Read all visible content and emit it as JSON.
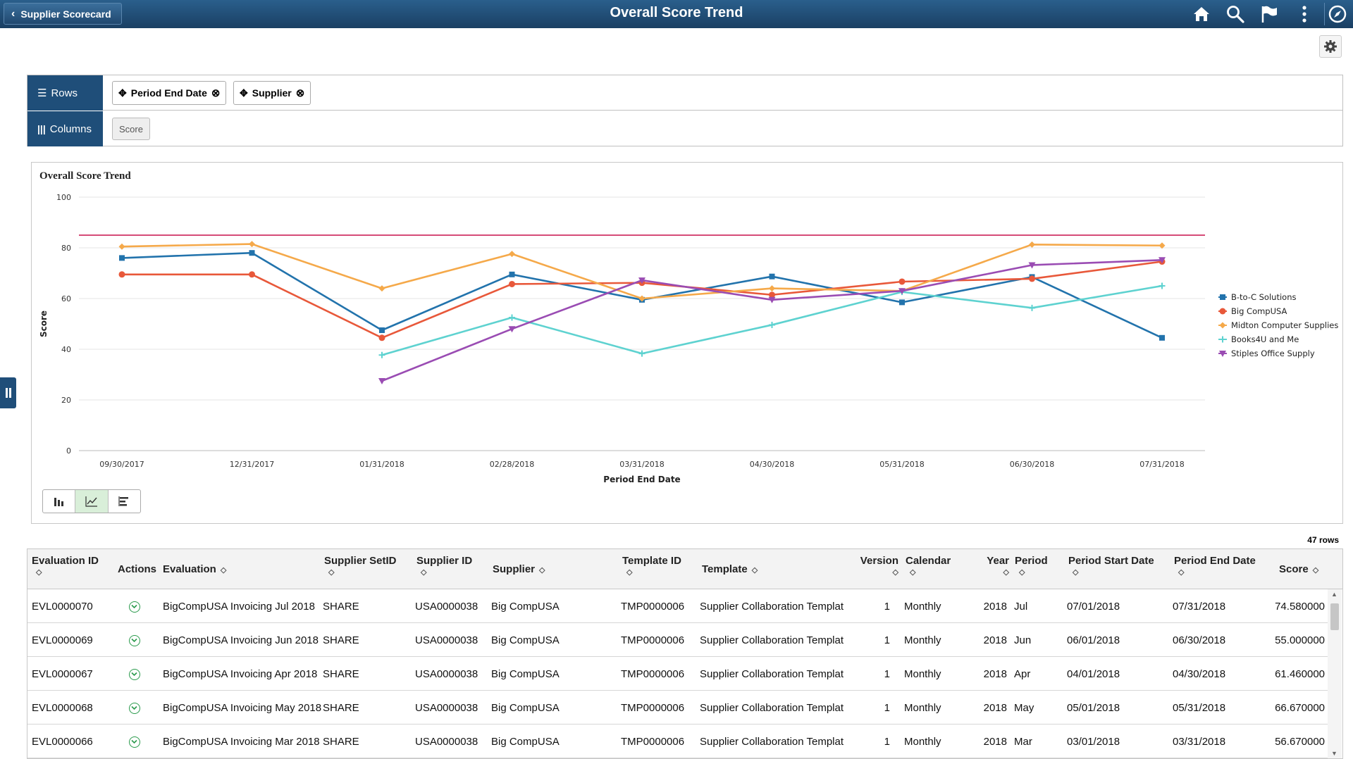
{
  "header": {
    "back_label": "Supplier Scorecard",
    "title": "Overall Score Trend"
  },
  "pivot": {
    "rows_label": "Rows",
    "columns_label": "Columns",
    "row_fields": [
      "Period End Date",
      "Supplier"
    ],
    "column_fields": [
      "Score"
    ]
  },
  "chart_data": {
    "type": "line",
    "title": "Overall Score Trend",
    "xlabel": "Period End Date",
    "ylabel": "Score",
    "ylim": [
      0,
      100
    ],
    "yticks": [
      0,
      20,
      40,
      60,
      80,
      100
    ],
    "categories": [
      "09/30/2017",
      "12/31/2017",
      "01/31/2018",
      "02/28/2018",
      "03/31/2018",
      "04/30/2018",
      "05/31/2018",
      "06/30/2018",
      "07/31/2018"
    ],
    "reference_line": 85,
    "reference_color": "#c8104a",
    "legend_position": "right",
    "grid": true,
    "series": [
      {
        "name": "B-to-C Solutions",
        "color": "#2273ac",
        "marker": "square",
        "values": [
          76,
          78,
          47.5,
          69.5,
          59.5,
          68.7,
          58.5,
          68.5,
          44.5
        ]
      },
      {
        "name": "Big CompUSA",
        "color": "#e8583a",
        "marker": "circle",
        "values": [
          69.5,
          69.5,
          44.5,
          65.7,
          66.2,
          61.46,
          66.67,
          67.8,
          74.58
        ]
      },
      {
        "name": "Midton Computer Supplies",
        "color": "#f5a94a",
        "marker": "diamond",
        "values": [
          80.5,
          81.5,
          64,
          77.6,
          60,
          64,
          63,
          81.3,
          80.9
        ]
      },
      {
        "name": "Books4U and Me",
        "color": "#5ed2d0",
        "marker": "plus",
        "values": [
          null,
          null,
          37.7,
          52.5,
          38.3,
          49.6,
          62.6,
          56.3,
          65
        ]
      },
      {
        "name": "Stiples Office Supply",
        "color": "#9a4cb3",
        "marker": "triangle-down",
        "values": [
          null,
          null,
          27.5,
          48,
          67.2,
          59.5,
          63,
          73.2,
          75.2
        ]
      }
    ]
  },
  "chart_type_buttons": [
    "bar-chart-icon",
    "line-chart-icon",
    "horizontal-bar-icon"
  ],
  "grid": {
    "row_count": "47 rows",
    "columns": [
      "Evaluation ID",
      "Actions",
      "Evaluation",
      "Supplier SetID",
      "Supplier ID",
      "Supplier",
      "Template ID",
      "Template",
      "Version",
      "Calendar",
      "Year",
      "Period",
      "Period Start Date",
      "Period End Date",
      "Score"
    ],
    "rows": [
      [
        "EVL0000070",
        "",
        "BigCompUSA Invoicing Jul 2018",
        "SHARE",
        "USA0000038",
        "Big CompUSA",
        "TMP0000006",
        "Supplier Collaboration Templat",
        "1",
        "Monthly",
        "2018",
        "Jul",
        "07/01/2018",
        "07/31/2018",
        "74.580000"
      ],
      [
        "EVL0000069",
        "",
        "BigCompUSA Invoicing Jun 2018",
        "SHARE",
        "USA0000038",
        "Big CompUSA",
        "TMP0000006",
        "Supplier Collaboration Templat",
        "1",
        "Monthly",
        "2018",
        "Jun",
        "06/01/2018",
        "06/30/2018",
        "55.000000"
      ],
      [
        "EVL0000067",
        "",
        "BigCompUSA Invoicing Apr 2018",
        "SHARE",
        "USA0000038",
        "Big CompUSA",
        "TMP0000006",
        "Supplier Collaboration Templat",
        "1",
        "Monthly",
        "2018",
        "Apr",
        "04/01/2018",
        "04/30/2018",
        "61.460000"
      ],
      [
        "EVL0000068",
        "",
        "BigCompUSA Invoicing May 2018",
        "SHARE",
        "USA0000038",
        "Big CompUSA",
        "TMP0000006",
        "Supplier Collaboration Templat",
        "1",
        "Monthly",
        "2018",
        "May",
        "05/01/2018",
        "05/31/2018",
        "66.670000"
      ],
      [
        "EVL0000066",
        "",
        "BigCompUSA Invoicing Mar 2018",
        "SHARE",
        "USA0000038",
        "Big CompUSA",
        "TMP0000006",
        "Supplier Collaboration Templat",
        "1",
        "Monthly",
        "2018",
        "Mar",
        "03/01/2018",
        "03/31/2018",
        "56.670000"
      ]
    ]
  },
  "colors": {
    "header_bg": "#1f4e79",
    "accent_green": "#2a9a4c"
  }
}
